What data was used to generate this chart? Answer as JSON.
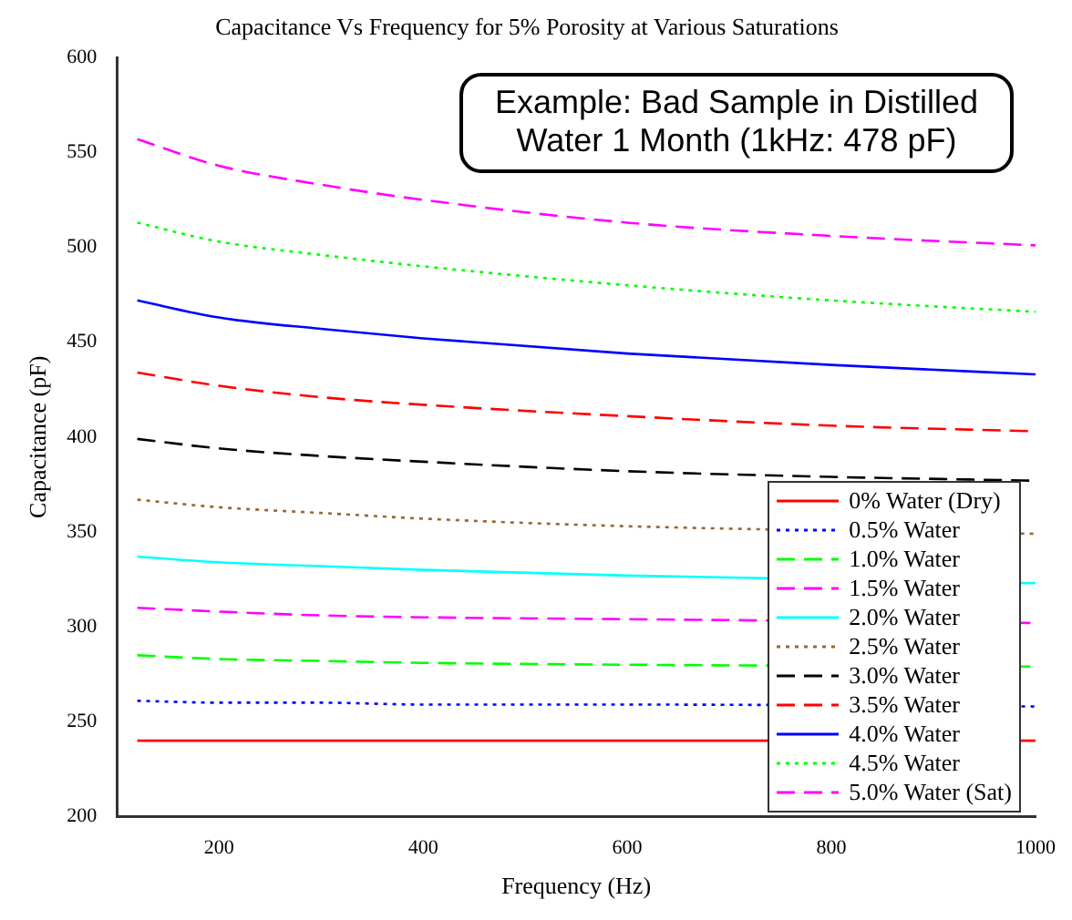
{
  "chart_data": {
    "type": "line",
    "title": "Capacitance Vs Frequency for 5% Porosity at Various Saturations",
    "xlabel": "Frequency (Hz)",
    "ylabel": "Capacitance (pF)",
    "x": [
      120,
      200,
      300,
      400,
      600,
      800,
      1000
    ],
    "xlim": [
      100,
      1000
    ],
    "xticks": [
      200,
      400,
      600,
      800,
      1000
    ],
    "ylim": [
      200,
      600
    ],
    "yticks": [
      200,
      250,
      300,
      350,
      400,
      450,
      500,
      550,
      600
    ],
    "grid": false,
    "legend": "bottom right",
    "marker": "none",
    "annotations": [
      "Example: Bad Sample in Distilled Water 1 Month (1kHz: 478 pF)"
    ],
    "series": [
      {
        "name": "0% Water (Dry)",
        "color": "#ff0000",
        "line_style": "solid",
        "values": [
          240,
          240,
          240,
          240,
          240,
          null,
          240
        ]
      },
      {
        "name": "0.5% Water",
        "color": "#0000ff",
        "line_style": "dotted",
        "values": [
          261,
          260,
          260,
          259,
          259,
          null,
          258
        ]
      },
      {
        "name": "1.0% Water",
        "color": "#00ff00",
        "line_style": "dashed",
        "values": [
          285,
          283,
          282,
          281,
          280,
          null,
          279
        ]
      },
      {
        "name": "1.5% Water",
        "color": "#ff00ff",
        "line_style": "dashed",
        "values": [
          310,
          308,
          306,
          305,
          304,
          null,
          302
        ]
      },
      {
        "name": "2.0% Water",
        "color": "#00ffff",
        "line_style": "solid",
        "values": [
          337,
          334,
          332,
          330,
          327,
          null,
          323
        ]
      },
      {
        "name": "2.5% Water",
        "color": "#996633",
        "line_style": "dotted",
        "values": [
          367,
          363,
          360,
          357,
          353,
          null,
          349
        ]
      },
      {
        "name": "3.0% Water",
        "color": "#000000",
        "line_style": "dashed",
        "values": [
          399,
          394,
          390,
          387,
          382,
          379,
          377
        ]
      },
      {
        "name": "3.5% Water",
        "color": "#ff0000",
        "line_style": "dashed",
        "values": [
          434,
          427,
          421,
          417,
          411,
          406,
          403
        ]
      },
      {
        "name": "4.0% Water",
        "color": "#0000ff",
        "line_style": "solid",
        "values": [
          472,
          463,
          457,
          452,
          444,
          438,
          433
        ]
      },
      {
        "name": "4.5% Water",
        "color": "#00ff00",
        "line_style": "dotted",
        "values": [
          513,
          503,
          496,
          490,
          480,
          472,
          466
        ]
      },
      {
        "name": "5.0% Water (Sat)",
        "color": "#ff00ff",
        "line_style": "dashed",
        "values": [
          557,
          543,
          533,
          525,
          513,
          506,
          501
        ]
      }
    ]
  }
}
